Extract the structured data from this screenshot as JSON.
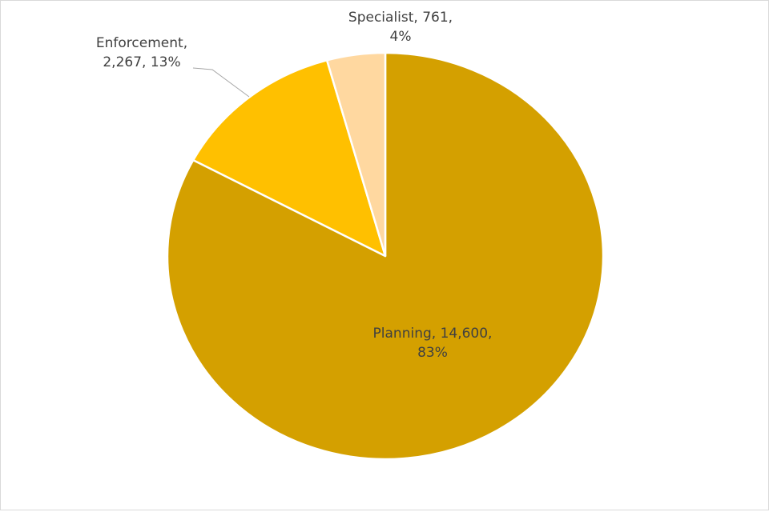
{
  "chart_data": {
    "type": "pie",
    "title": "",
    "start_angle_deg": 0,
    "direction": "clockwise",
    "slices": [
      {
        "name": "Planning",
        "value": 14600,
        "percent": 83,
        "color": "#D4A000",
        "label_lines": [
          "Planning, 14,600,",
          "83%"
        ]
      },
      {
        "name": "Enforcement",
        "value": 2267,
        "percent": 13,
        "color": "#FFC000",
        "label_lines": [
          "Enforcement,",
          "2,267, 13%"
        ]
      },
      {
        "name": "Specialist",
        "value": 761,
        "percent": 4,
        "color": "#FFD8A0",
        "label_lines": [
          "Specialist, 761,",
          "4%"
        ]
      }
    ],
    "legend": "none",
    "border_color": "#FFFFFF"
  }
}
